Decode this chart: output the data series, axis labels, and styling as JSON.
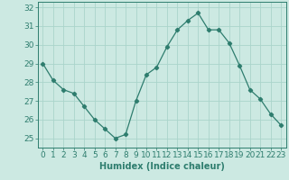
{
  "x": [
    0,
    1,
    2,
    3,
    4,
    5,
    6,
    7,
    8,
    9,
    10,
    11,
    12,
    13,
    14,
    15,
    16,
    17,
    18,
    19,
    20,
    21,
    22,
    23
  ],
  "y": [
    29.0,
    28.1,
    27.6,
    27.4,
    26.7,
    26.0,
    25.5,
    25.0,
    25.2,
    27.0,
    28.4,
    28.8,
    29.9,
    30.8,
    31.3,
    31.7,
    30.8,
    30.8,
    30.1,
    28.9,
    27.6,
    27.1,
    26.3,
    25.7
  ],
  "line_color": "#2e7d6e",
  "marker": "D",
  "marker_size": 2.2,
  "bg_color": "#cce9e2",
  "grid_color": "#aad4cb",
  "xlabel": "Humidex (Indice chaleur)",
  "xlim": [
    -0.5,
    23.5
  ],
  "ylim": [
    24.5,
    32.3
  ],
  "yticks": [
    25,
    26,
    27,
    28,
    29,
    30,
    31,
    32
  ],
  "xticks": [
    0,
    1,
    2,
    3,
    4,
    5,
    6,
    7,
    8,
    9,
    10,
    11,
    12,
    13,
    14,
    15,
    16,
    17,
    18,
    19,
    20,
    21,
    22,
    23
  ],
  "axis_color": "#2e7d6e",
  "label_color": "#2e7d6e",
  "tick_color": "#2e7d6e",
  "xlabel_fontsize": 7,
  "tick_fontsize": 6.5
}
